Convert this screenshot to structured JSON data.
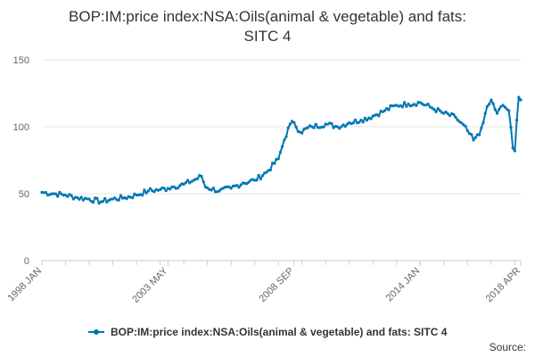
{
  "chart_data": {
    "type": "line",
    "title": "BOP:IM:price index:NSA:Oils(animal & vegetable) and fats:\nSITC 4",
    "xlabel": "",
    "ylabel": "",
    "ylim": [
      0,
      150
    ],
    "yticks": [
      0,
      50,
      100,
      150
    ],
    "xticks": [
      "1998 JAN",
      "2003 MAY",
      "2008 SEP",
      "2014 JAN",
      "2018 APR"
    ],
    "x_range": [
      "1998 JAN",
      "2018 APR"
    ],
    "grid": true,
    "legend_position": "bottom",
    "series": [
      {
        "name": "BOP:IM:price index:NSA:Oils(animal & vegetable) and fats: SITC 4",
        "color": "#0077b5",
        "points": [
          [
            "1998 JAN",
            51
          ],
          [
            "1998 JUL",
            50
          ],
          [
            "1999 JAN",
            49
          ],
          [
            "1999 JUL",
            47
          ],
          [
            "2000 JAN",
            46
          ],
          [
            "2000 JUL",
            44
          ],
          [
            "2001 JAN",
            46
          ],
          [
            "2001 JUL",
            47
          ],
          [
            "2002 JAN",
            49
          ],
          [
            "2002 JUL",
            52
          ],
          [
            "2003 JAN",
            53
          ],
          [
            "2003 MAY",
            54
          ],
          [
            "2003 JUL",
            55
          ],
          [
            "2004 JAN",
            57
          ],
          [
            "2004 JUN",
            60
          ],
          [
            "2004 OCT",
            63
          ],
          [
            "2004 DEC",
            55
          ],
          [
            "2005 JUL",
            52
          ],
          [
            "2006 JAN",
            54
          ],
          [
            "2006 JUL",
            58
          ],
          [
            "2007 JAN",
            60
          ],
          [
            "2007 JUL",
            66
          ],
          [
            "2008 JAN",
            76
          ],
          [
            "2008 APR",
            90
          ],
          [
            "2008 JUL",
            102
          ],
          [
            "2008 SEP",
            103
          ],
          [
            "2008 DEC",
            96
          ],
          [
            "2009 JUN",
            100
          ],
          [
            "2010 JAN",
            102
          ],
          [
            "2010 JUL",
            100
          ],
          [
            "2011 JAN",
            103
          ],
          [
            "2011 JUL",
            105
          ],
          [
            "2012 JAN",
            108
          ],
          [
            "2012 JUL",
            112
          ],
          [
            "2013 JAN",
            116
          ],
          [
            "2013 JUL",
            117
          ],
          [
            "2014 JAN",
            118
          ],
          [
            "2014 JUL",
            114
          ],
          [
            "2015 JAN",
            110
          ],
          [
            "2015 JUL",
            107
          ],
          [
            "2016 JAN",
            97
          ],
          [
            "2016 APR",
            90
          ],
          [
            "2016 JUL",
            94
          ],
          [
            "2016 OCT",
            110
          ],
          [
            "2017 JAN",
            120
          ],
          [
            "2017 APR",
            110
          ],
          [
            "2017 JUL",
            116
          ],
          [
            "2017 OCT",
            112
          ],
          [
            "2017 DEC",
            84
          ],
          [
            "2018 JAN",
            82
          ],
          [
            "2018 FEB",
            105
          ],
          [
            "2018 MAR",
            122
          ],
          [
            "2018 APR",
            120
          ]
        ]
      }
    ]
  },
  "legend": {
    "label": "BOP:IM:price index:NSA:Oils(animal & vegetable) and fats: SITC 4"
  },
  "footer": {
    "source": "Source:"
  },
  "colors": {
    "line": "#0077b5",
    "grid": "#e6e6e6",
    "axis": "#c0d0e0",
    "text": "#333333",
    "tick_text": "#666666"
  }
}
